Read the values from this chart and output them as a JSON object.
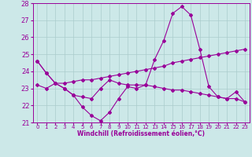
{
  "xlabel": "Windchill (Refroidissement éolien,°C)",
  "hours": [
    0,
    1,
    2,
    3,
    4,
    5,
    6,
    7,
    8,
    9,
    10,
    11,
    12,
    13,
    14,
    15,
    16,
    17,
    18,
    19,
    20,
    21,
    22,
    23
  ],
  "line1": [
    24.6,
    23.9,
    23.3,
    23.0,
    22.6,
    21.9,
    21.4,
    21.1,
    21.6,
    22.4,
    23.1,
    23.0,
    23.2,
    24.7,
    25.8,
    27.4,
    27.8,
    27.3,
    25.3,
    23.1,
    22.5,
    22.4,
    22.8,
    22.2
  ],
  "line2": [
    23.2,
    23.0,
    23.3,
    23.3,
    23.4,
    23.5,
    23.5,
    23.6,
    23.7,
    23.8,
    23.9,
    24.0,
    24.1,
    24.2,
    24.3,
    24.5,
    24.6,
    24.7,
    24.8,
    24.9,
    25.0,
    25.1,
    25.2,
    25.3
  ],
  "line3": [
    24.6,
    23.9,
    23.3,
    23.0,
    22.6,
    22.5,
    22.4,
    23.0,
    23.5,
    23.3,
    23.2,
    23.2,
    23.2,
    23.1,
    23.0,
    22.9,
    22.9,
    22.8,
    22.7,
    22.6,
    22.5,
    22.4,
    22.4,
    22.2
  ],
  "line_color": "#990099",
  "bg_color": "#cce8e8",
  "grid_color": "#aacccc",
  "ylim": [
    21,
    28
  ],
  "yticks": [
    21,
    22,
    23,
    24,
    25,
    26,
    27,
    28
  ],
  "xticks": [
    0,
    1,
    2,
    3,
    4,
    5,
    6,
    7,
    8,
    9,
    10,
    11,
    12,
    13,
    14,
    15,
    16,
    17,
    18,
    19,
    20,
    21,
    22,
    23
  ]
}
